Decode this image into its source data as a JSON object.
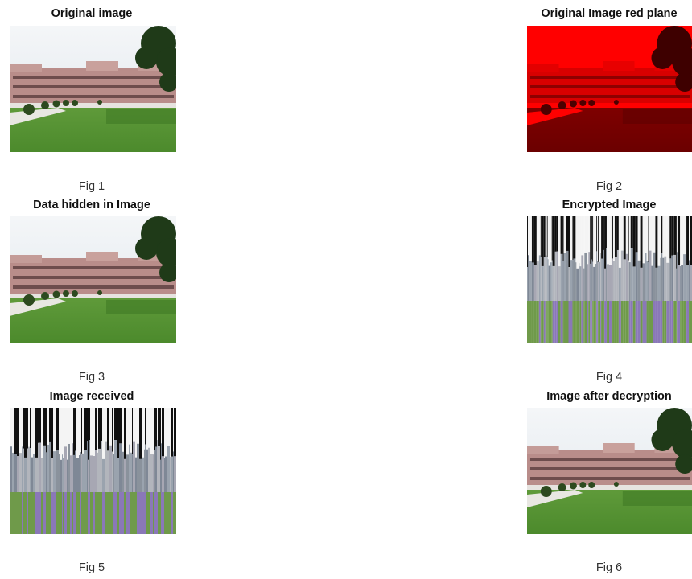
{
  "panels": [
    {
      "title": "Original image",
      "caption": "Fig 1"
    },
    {
      "title": "Original Image red plane",
      "caption": "Fig 2"
    },
    {
      "title": "Data hidden in Image",
      "caption": "Fig 3"
    },
    {
      "title": "Encrypted Image",
      "caption": "Fig 4"
    },
    {
      "title": "Image received",
      "caption": "Fig 5"
    },
    {
      "title": "Image after decryption",
      "caption": "Fig 6"
    }
  ]
}
